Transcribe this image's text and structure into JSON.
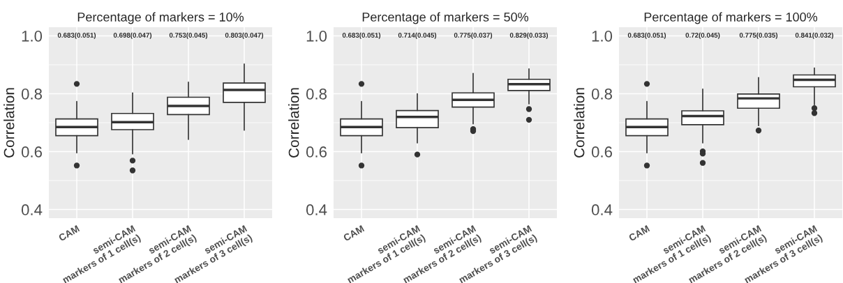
{
  "chart_data": [
    {
      "type": "box",
      "title": "Percentage of markers = 10%",
      "ylabel": "Correlation",
      "categories": [
        "CAM",
        "semi-CAM\nmarkers of 1 cell(s)",
        "semi-CAM\nmarkers of 2 cell(s)",
        "semi-CAM\nmarkers of 3 cell(s)"
      ],
      "boxes": [
        {
          "low": 0.596,
          "q1": 0.655,
          "median": 0.685,
          "q3": 0.713,
          "high": 0.773,
          "outliers": [
            0.834,
            0.552
          ]
        },
        {
          "low": 0.592,
          "q1": 0.676,
          "median": 0.702,
          "q3": 0.732,
          "high": 0.803,
          "outliers": [
            0.569,
            0.535
          ]
        },
        {
          "low": 0.642,
          "q1": 0.728,
          "median": 0.758,
          "q3": 0.788,
          "high": 0.84
        },
        {
          "low": 0.674,
          "q1": 0.77,
          "median": 0.813,
          "q3": 0.837,
          "high": 0.903
        }
      ],
      "annotations": [
        "0.683(0.051)",
        "0.698(0.047)",
        "0.753(0.045)",
        "0.803(0.047)"
      ],
      "ylim": [
        0.37,
        1.03
      ],
      "yticks": [
        0.4,
        {
          "value": 0.5,
          "label": null
        },
        0.6,
        {
          "value": 0.7,
          "label": null
        },
        0.8,
        {
          "value": 0.9,
          "label": null
        },
        {
          "value": 1.0,
          "label": "1.0"
        }
      ],
      "grid": true
    },
    {
      "type": "box",
      "title": "Percentage of markers = 50%",
      "ylabel": "Correlation",
      "categories": [
        "CAM",
        "semi-CAM\nmarkers of 1 cell(s)",
        "semi-CAM\nmarkers of 2 cell(s)",
        "semi-CAM\nmarkers of 3 cell(s)"
      ],
      "boxes": [
        {
          "low": 0.596,
          "q1": 0.655,
          "median": 0.685,
          "q3": 0.713,
          "high": 0.773,
          "outliers": [
            0.834,
            0.552
          ]
        },
        {
          "low": 0.63,
          "q1": 0.683,
          "median": 0.72,
          "q3": 0.742,
          "high": 0.8,
          "outliers": [
            0.59
          ]
        },
        {
          "low": 0.696,
          "q1": 0.754,
          "median": 0.779,
          "q3": 0.803,
          "high": 0.87,
          "outliers": [
            0.678,
            0.671
          ]
        },
        {
          "low": 0.765,
          "q1": 0.811,
          "median": 0.833,
          "q3": 0.85,
          "high": 0.886,
          "outliers": [
            0.747,
            0.71
          ]
        }
      ],
      "annotations": [
        "0.683(0.051)",
        "0.714(0.045)",
        "0.775(0.037)",
        "0.829(0.033)"
      ],
      "ylim": [
        0.37,
        1.03
      ],
      "yticks": [
        0.4,
        {
          "value": 0.5,
          "label": null
        },
        0.6,
        {
          "value": 0.7,
          "label": null
        },
        0.8,
        {
          "value": 0.9,
          "label": null
        },
        {
          "value": 1.0,
          "label": "1.0"
        }
      ],
      "grid": true
    },
    {
      "type": "box",
      "title": "Percentage of markers = 100%",
      "ylabel": "Correlation",
      "categories": [
        "CAM",
        "semi-CAM\nmarkers of 1 cell(s)",
        "semi-CAM\nmarkers of 2 cell(s)",
        "semi-CAM\nmarkers of 3 cell(s)"
      ],
      "boxes": [
        {
          "low": 0.596,
          "q1": 0.655,
          "median": 0.685,
          "q3": 0.713,
          "high": 0.773,
          "outliers": [
            0.834,
            0.552
          ]
        },
        {
          "low": 0.63,
          "q1": 0.693,
          "median": 0.723,
          "q3": 0.741,
          "high": 0.816,
          "outliers": [
            0.601,
            0.593,
            0.561
          ]
        },
        {
          "low": 0.69,
          "q1": 0.75,
          "median": 0.784,
          "q3": 0.799,
          "high": 0.856,
          "outliers": [
            0.673
          ]
        },
        {
          "low": 0.762,
          "q1": 0.824,
          "median": 0.848,
          "q3": 0.865,
          "high": 0.889,
          "outliers": [
            0.75,
            0.733
          ]
        }
      ],
      "annotations": [
        "0.683(0.051)",
        "0.72(0.045)",
        "0.775(0.035)",
        "0.841(0.032)"
      ],
      "ylim": [
        0.37,
        1.03
      ],
      "yticks": [
        0.4,
        {
          "value": 0.5,
          "label": null
        },
        0.6,
        {
          "value": 0.7,
          "label": null
        },
        0.8,
        {
          "value": 0.9,
          "label": null
        },
        {
          "value": 1.0,
          "label": "1.0"
        }
      ],
      "grid": true
    }
  ]
}
